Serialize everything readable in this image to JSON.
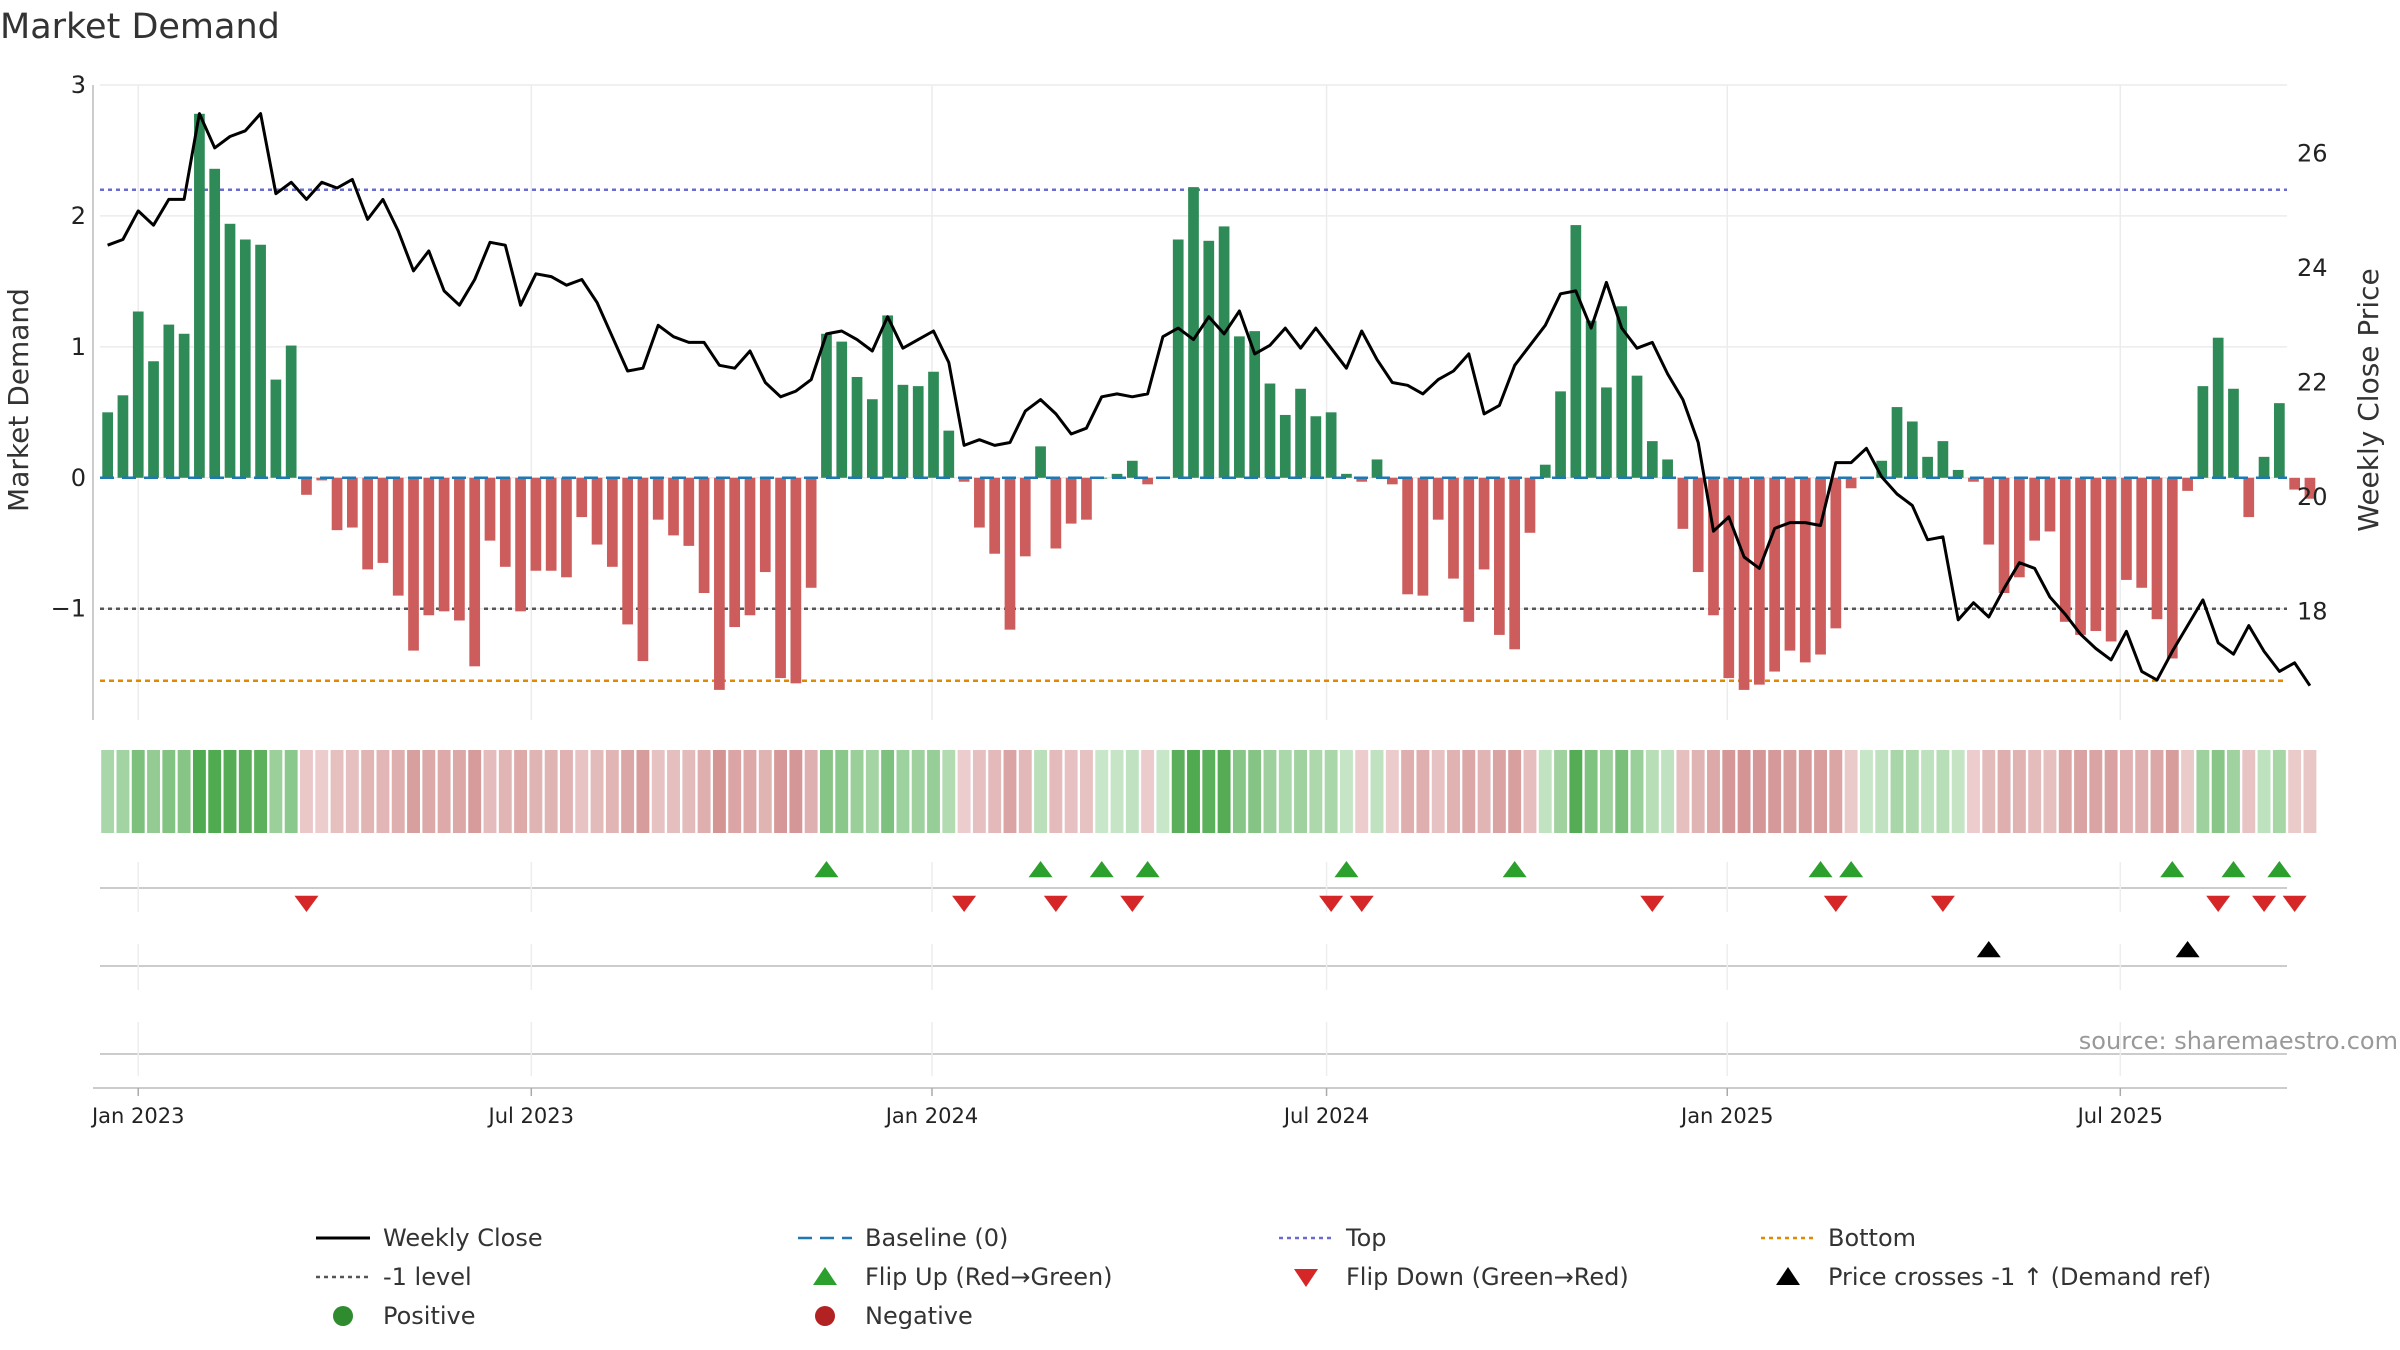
{
  "chart_data": {
    "type": "bar",
    "title": "Market Demand",
    "ylabel_left": "Market Demand",
    "ylabel_right": "Weekly Close Price",
    "source": "source: sharemaestro.com",
    "ylim_left": [
      -1.85,
      3.0
    ],
    "yticks_left": [
      {
        "v": 3,
        "t": "3"
      },
      {
        "v": 2,
        "t": "2"
      },
      {
        "v": 1,
        "t": "1"
      },
      {
        "v": 0,
        "t": "0"
      },
      {
        "v": -1,
        "t": "−1"
      }
    ],
    "ylim_right": [
      16.1,
      27.2
    ],
    "yticks_right": [
      {
        "v": 26,
        "t": "26"
      },
      {
        "v": 24,
        "t": "24"
      },
      {
        "v": 22,
        "t": "22"
      },
      {
        "v": 20,
        "t": "20"
      },
      {
        "v": 18,
        "t": "18"
      }
    ],
    "x_start": "2022-12-20",
    "x_week_index_range": [
      0,
      142
    ],
    "xticks": [
      {
        "label": "Jan 2023",
        "week": 2.0
      },
      {
        "label": "Jul 2023",
        "week": 27.7
      },
      {
        "label": "Jan 2024",
        "week": 53.9
      },
      {
        "label": "Jul 2024",
        "week": 79.7
      },
      {
        "label": "Jan 2025",
        "week": 105.9
      },
      {
        "label": "Jul 2025",
        "week": 131.6
      }
    ],
    "demand": [
      0.5,
      0.63,
      1.27,
      0.89,
      1.17,
      1.1,
      2.78,
      2.36,
      1.94,
      1.82,
      1.78,
      0.75,
      1.01,
      -0.13,
      -0.02,
      -0.4,
      -0.38,
      -0.7,
      -0.65,
      -0.9,
      -1.32,
      -1.05,
      -1.02,
      -1.09,
      -1.44,
      -0.48,
      -0.68,
      -1.02,
      -0.71,
      -0.71,
      -0.76,
      -0.3,
      -0.51,
      -0.68,
      -1.12,
      -1.4,
      -0.32,
      -0.44,
      -0.52,
      -0.88,
      -1.62,
      -1.14,
      -1.05,
      -0.72,
      -1.53,
      -1.57,
      -0.84,
      1.1,
      1.04,
      0.77,
      0.6,
      1.24,
      0.71,
      0.7,
      0.81,
      0.36,
      -0.03,
      -0.38,
      -0.58,
      -1.16,
      -0.6,
      0.24,
      -0.54,
      -0.35,
      -0.32,
      0.0,
      0.03,
      0.13,
      -0.05,
      0.0,
      1.82,
      2.22,
      1.81,
      1.92,
      1.08,
      1.12,
      0.72,
      0.48,
      0.68,
      0.47,
      0.5,
      0.03,
      -0.03,
      0.14,
      -0.05,
      -0.89,
      -0.9,
      -0.32,
      -0.77,
      -1.1,
      -0.7,
      -1.2,
      -1.31,
      -0.42,
      0.1,
      0.66,
      1.93,
      1.2,
      0.69,
      1.31,
      0.78,
      0.28,
      0.14,
      -0.39,
      -0.72,
      -1.05,
      -1.53,
      -1.62,
      -1.58,
      -1.48,
      -1.32,
      -1.41,
      -1.35,
      -1.15,
      -0.08,
      0.0,
      0.13,
      0.54,
      0.43,
      0.16,
      0.28,
      0.06,
      -0.03,
      -0.51,
      -0.88,
      -0.76,
      -0.48,
      -0.41,
      -1.1,
      -1.2,
      -1.17,
      -1.25,
      -0.78,
      -0.84,
      -1.08,
      -1.38,
      -0.1,
      0.7,
      1.07,
      0.68,
      -0.3,
      0.16,
      0.57,
      -0.09,
      -0.16
    ],
    "close": [
      24.4,
      24.5,
      25.0,
      24.75,
      25.2,
      25.2,
      26.7,
      26.1,
      26.3,
      26.4,
      26.7,
      25.3,
      25.5,
      25.2,
      25.5,
      25.4,
      25.55,
      24.85,
      25.2,
      24.65,
      23.95,
      24.3,
      23.6,
      23.35,
      23.8,
      24.45,
      24.4,
      23.35,
      23.9,
      23.85,
      23.7,
      23.8,
      23.4,
      22.8,
      22.2,
      22.25,
      23.0,
      22.8,
      22.7,
      22.7,
      22.3,
      22.25,
      22.55,
      22.0,
      21.75,
      21.85,
      22.05,
      22.85,
      22.9,
      22.75,
      22.55,
      23.15,
      22.6,
      22.75,
      22.9,
      22.35,
      20.9,
      21.0,
      20.9,
      20.95,
      21.5,
      21.7,
      21.45,
      21.1,
      21.2,
      21.75,
      21.8,
      21.75,
      21.8,
      22.8,
      22.95,
      22.75,
      23.15,
      22.85,
      23.25,
      22.5,
      22.65,
      22.95,
      22.6,
      22.95,
      22.6,
      22.25,
      22.9,
      22.4,
      22.0,
      21.95,
      21.8,
      22.05,
      22.2,
      22.5,
      21.45,
      21.6,
      22.3,
      22.65,
      23.0,
      23.55,
      23.6,
      22.95,
      23.75,
      22.95,
      22.6,
      22.7,
      22.15,
      21.7,
      20.95,
      19.4,
      19.65,
      18.95,
      18.75,
      19.45,
      19.55,
      19.55,
      19.5,
      20.6,
      20.6,
      20.85,
      20.35,
      20.05,
      19.85,
      19.25,
      19.3,
      17.85,
      18.15,
      17.9,
      18.4,
      18.85,
      18.75,
      18.25,
      17.95,
      17.6,
      17.35,
      17.15,
      17.65,
      16.95,
      16.8,
      17.3,
      17.75,
      18.2,
      17.45,
      17.25,
      17.75,
      17.3,
      16.95,
      17.1,
      16.7
    ],
    "top_level": 2.2,
    "neg1_level": -1,
    "bottom_level": -1.55,
    "flip_up_weeks": [
      47,
      61,
      65,
      68,
      81,
      92,
      112,
      114,
      135,
      139,
      142
    ],
    "flip_down_weeks": [
      13,
      56,
      62,
      67,
      80,
      82,
      101,
      113,
      120,
      138,
      141,
      143
    ],
    "price_cross_weeks": [
      123,
      136
    ],
    "legend": [
      {
        "label": "Weekly Close",
        "kind": "line",
        "color": "#000000"
      },
      {
        "label": "Baseline (0)",
        "kind": "dash",
        "color": "#1f77b4"
      },
      {
        "label": "Top",
        "kind": "dot",
        "color": "#6a6ad0"
      },
      {
        "label": "Bottom",
        "kind": "dot",
        "color": "#e08a00"
      },
      {
        "label": "-1 level",
        "kind": "dot",
        "color": "#555555"
      },
      {
        "label": "Flip Up (Red→Green)",
        "kind": "tri-up",
        "color": "#2ca02c"
      },
      {
        "label": "Flip Down (Green→Red)",
        "kind": "tri-down",
        "color": "#d62728"
      },
      {
        "label": "Price crosses -1 ↑ (Demand ref)",
        "kind": "tri-up",
        "color": "#000000"
      },
      {
        "label": "Positive",
        "kind": "circle",
        "color": "#2e8b2e"
      },
      {
        "label": "Negative",
        "kind": "circle",
        "color": "#b22222"
      }
    ],
    "colors": {
      "pos_bar": "#2e8b57",
      "neg_bar": "#cd5c5c",
      "close_line": "#000000",
      "baseline": "#1f77b4",
      "top": "#6a6ad0",
      "neg1": "#555555",
      "bottom": "#e08a00",
      "flip_up": "#2ca02c",
      "flip_down": "#d62728",
      "cross": "#000000"
    }
  }
}
